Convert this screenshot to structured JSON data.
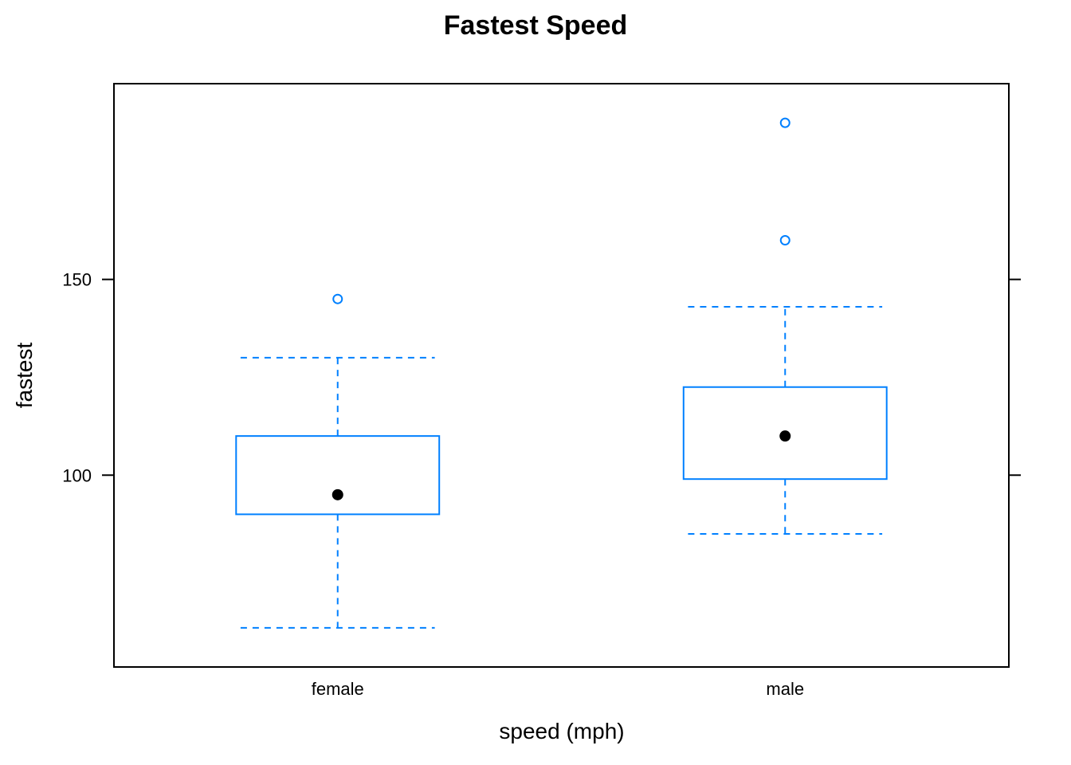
{
  "chart_data": {
    "type": "boxplot",
    "title": "Fastest Speed",
    "xlabel": "speed (mph)",
    "ylabel": "fastest",
    "categories": [
      "female",
      "male"
    ],
    "ylim": [
      51,
      200
    ],
    "yticks": [
      100,
      150
    ],
    "series": [
      {
        "category": "female",
        "whisker_low": 61,
        "q1": 90,
        "median": 95,
        "q3": 110,
        "whisker_high": 130,
        "outliers": [
          145
        ]
      },
      {
        "category": "male",
        "whisker_low": 85,
        "q1": 99,
        "median": 110,
        "q3": 122.5,
        "whisker_high": 143,
        "outliers": [
          160,
          190
        ]
      }
    ],
    "colors": {
      "box": "#0080ff",
      "median_dot": "#000000",
      "frame": "#000000"
    }
  }
}
